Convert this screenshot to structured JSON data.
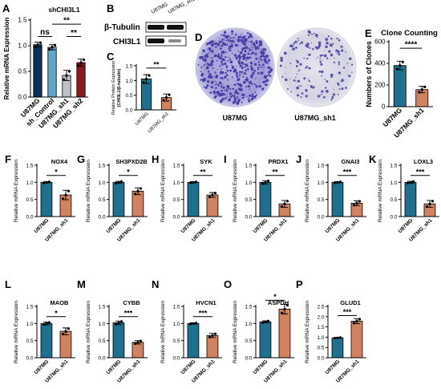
{
  "colors": {
    "blue": "#1f6f8f",
    "orange": "#d2825f",
    "navy": "#0c3158",
    "lightblue": "#5fa6c7",
    "gray": "#b9c3c9",
    "darkred": "#8b1a1f"
  },
  "panelA": {
    "letter": "A",
    "title": "shCHI3L1",
    "ylabel": "Relative mRNA Expression",
    "categories": [
      "U87MG",
      "sh_Control",
      "U87MG_sh1",
      "U87MG_sh2"
    ],
    "values": [
      1.02,
      0.97,
      0.42,
      0.67
    ],
    "errors": [
      0.05,
      0.05,
      0.1,
      0.07
    ],
    "ylim": [
      0,
      1.5
    ],
    "yticks": [
      "0.0",
      "0.5",
      "1.0",
      "1.5"
    ],
    "sig": [
      {
        "label": "ns",
        "from": 0,
        "to": 1,
        "y": 1.18
      },
      {
        "label": "**",
        "from": 1,
        "to": 3,
        "y": 1.42
      },
      {
        "label": "**",
        "from": 2,
        "to": 3,
        "y": 1.18
      }
    ]
  },
  "panelB": {
    "letter": "B",
    "labels": [
      "β-Tubulin",
      "CHI3L1"
    ],
    "lanes": [
      "U87MG",
      "U87MG_sh1"
    ]
  },
  "panelC": {
    "letter": "C",
    "ylabel": "Relative Protein Expression",
    "ylabel2": "(CHI3L1/β-tubulin)",
    "categories": [
      "U87MG",
      "U87MG_sh1"
    ],
    "values": [
      1.05,
      0.42
    ],
    "errors": [
      0.15,
      0.12
    ],
    "ylim": [
      0,
      1.5
    ],
    "yticks": [
      "0.0",
      "0.5",
      "1.0",
      "1.5"
    ],
    "sig": "**"
  },
  "panelD": {
    "letter": "D",
    "labels": [
      "U87MG",
      "U87MG_sh1"
    ]
  },
  "panelE": {
    "letter": "E",
    "title": "Clone Counting",
    "ylabel": "Numbers of Clones",
    "categories": [
      "U87MG",
      "U87MG_sh1"
    ],
    "values": [
      380,
      158
    ],
    "errors": [
      40,
      30
    ],
    "ylim": [
      0,
      600
    ],
    "yticks": [
      "0",
      "200",
      "400",
      "600"
    ],
    "sig": "****"
  },
  "row2": [
    {
      "letter": "F",
      "title": "NOX4",
      "sig": "*",
      "values": [
        1.0,
        0.63
      ],
      "errors": [
        0.02,
        0.14
      ]
    },
    {
      "letter": "G",
      "title": "SH3PXD2B",
      "sig": "*",
      "values": [
        1.0,
        0.74
      ],
      "errors": [
        0.03,
        0.1
      ]
    },
    {
      "letter": "H",
      "title": "SYK",
      "sig": "**",
      "values": [
        1.0,
        0.63
      ],
      "errors": [
        0.02,
        0.07
      ]
    },
    {
      "letter": "I",
      "title": "PRDX1",
      "sig": "**",
      "values": [
        1.0,
        0.37
      ],
      "errors": [
        0.05,
        0.1
      ]
    },
    {
      "letter": "J",
      "title": "GNAI3",
      "sig": "***",
      "values": [
        1.0,
        0.39
      ],
      "errors": [
        0.02,
        0.07
      ]
    },
    {
      "letter": "K",
      "title": "LOXL3",
      "sig": "***",
      "values": [
        1.0,
        0.37
      ],
      "errors": [
        0.03,
        0.1
      ]
    }
  ],
  "row3": [
    {
      "letter": "L",
      "title": "MAOB",
      "sig": "*",
      "values": [
        1.0,
        0.77
      ],
      "errors": [
        0.04,
        0.1
      ]
    },
    {
      "letter": "M",
      "title": "CYBB",
      "sig": "***",
      "values": [
        1.02,
        0.45
      ],
      "errors": [
        0.05,
        0.05
      ]
    },
    {
      "letter": "N",
      "title": "HVCN1",
      "sig": "***",
      "values": [
        1.0,
        0.65
      ],
      "errors": [
        0.02,
        0.06
      ]
    },
    {
      "letter": "O",
      "title": "ASPDH",
      "sig": "*",
      "values": [
        1.05,
        1.42
      ],
      "errors": [
        0.03,
        0.14
      ]
    },
    {
      "letter": "P",
      "title": "GLUD1",
      "sig": "***",
      "values": [
        0.97,
        1.78
      ],
      "errors": [
        0.02,
        0.12
      ]
    }
  ],
  "small_ylabel": "Relative mRNA Expression",
  "small_categories": [
    "U87MG",
    "U87MG_sh1"
  ],
  "small_ylim": [
    0,
    1.5
  ],
  "small_yticks": [
    "0.0",
    "0.5",
    "1.0",
    "1.5"
  ],
  "glud_ylim": [
    0,
    2.5
  ],
  "glud_yticks": [
    "0.0",
    "0.5",
    "1.0",
    "1.5",
    "2.0",
    "2.5"
  ],
  "chart_data": [
    {
      "type": "bar",
      "title": "shCHI3L1",
      "ylabel": "Relative mRNA Expression",
      "categories": [
        "U87MG",
        "sh_Control",
        "U87MG_sh1",
        "U87MG_sh2"
      ],
      "values": [
        1.02,
        0.97,
        0.42,
        0.67
      ],
      "ylim": [
        0,
        1.5
      ]
    },
    {
      "type": "bar",
      "ylabel": "Relative Protein Expression (CHI3L1/β-tubulin)",
      "categories": [
        "U87MG",
        "U87MG_sh1"
      ],
      "values": [
        1.05,
        0.42
      ],
      "ylim": [
        0,
        1.5
      ]
    },
    {
      "type": "bar",
      "title": "Clone Counting",
      "ylabel": "Numbers of Clones",
      "categories": [
        "U87MG",
        "U87MG_sh1"
      ],
      "values": [
        380,
        158
      ],
      "ylim": [
        0,
        600
      ]
    },
    {
      "type": "bar",
      "title": "NOX4",
      "categories": [
        "U87MG",
        "U87MG_sh1"
      ],
      "values": [
        1.0,
        0.63
      ],
      "ylim": [
        0,
        1.5
      ]
    },
    {
      "type": "bar",
      "title": "SH3PXD2B",
      "categories": [
        "U87MG",
        "U87MG_sh1"
      ],
      "values": [
        1.0,
        0.74
      ],
      "ylim": [
        0,
        1.5
      ]
    },
    {
      "type": "bar",
      "title": "SYK",
      "categories": [
        "U87MG",
        "U87MG_sh1"
      ],
      "values": [
        1.0,
        0.63
      ],
      "ylim": [
        0,
        1.5
      ]
    },
    {
      "type": "bar",
      "title": "PRDX1",
      "categories": [
        "U87MG",
        "U87MG_sh1"
      ],
      "values": [
        1.0,
        0.37
      ],
      "ylim": [
        0,
        1.5
      ]
    },
    {
      "type": "bar",
      "title": "GNAI3",
      "categories": [
        "U87MG",
        "U87MG_sh1"
      ],
      "values": [
        1.0,
        0.39
      ],
      "ylim": [
        0,
        1.5
      ]
    },
    {
      "type": "bar",
      "title": "LOXL3",
      "categories": [
        "U87MG",
        "U87MG_sh1"
      ],
      "values": [
        1.0,
        0.37
      ],
      "ylim": [
        0,
        1.5
      ]
    },
    {
      "type": "bar",
      "title": "MAOB",
      "categories": [
        "U87MG",
        "U87MG_sh1"
      ],
      "values": [
        1.0,
        0.77
      ],
      "ylim": [
        0,
        1.5
      ]
    },
    {
      "type": "bar",
      "title": "CYBB",
      "categories": [
        "U87MG",
        "U87MG_sh1"
      ],
      "values": [
        1.02,
        0.45
      ],
      "ylim": [
        0,
        1.5
      ]
    },
    {
      "type": "bar",
      "title": "HVCN1",
      "categories": [
        "U87MG",
        "U87MG_sh1"
      ],
      "values": [
        1.0,
        0.65
      ],
      "ylim": [
        0,
        1.5
      ]
    },
    {
      "type": "bar",
      "title": "ASPDH",
      "categories": [
        "U87MG",
        "U87MG_sh1"
      ],
      "values": [
        1.05,
        1.42
      ],
      "ylim": [
        0,
        1.5
      ]
    },
    {
      "type": "bar",
      "title": "GLUD1",
      "categories": [
        "U87MG",
        "U87MG_sh1"
      ],
      "values": [
        0.97,
        1.78
      ],
      "ylim": [
        0,
        2.5
      ]
    }
  ]
}
